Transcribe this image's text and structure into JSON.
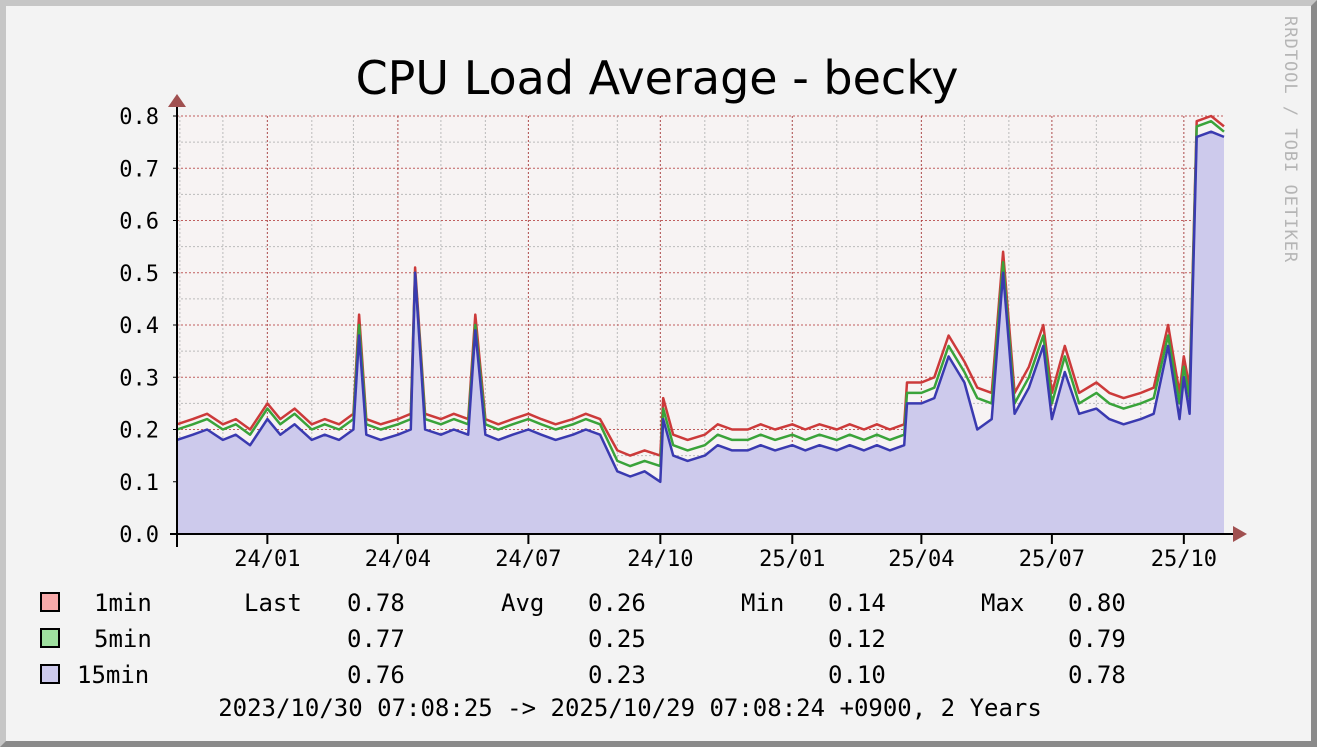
{
  "chart_data": {
    "type": "area",
    "title": "CPU Load Average - becky",
    "ylim": [
      0,
      0.8
    ],
    "yticks": [
      "0.0",
      "0.1",
      "0.2",
      "0.3",
      "0.4",
      "0.5",
      "0.6",
      "0.7",
      "0.8"
    ],
    "xlim": [
      "2023-10-30",
      "2025-10-29"
    ],
    "xticks": [
      {
        "label": "24/01",
        "date": "2024-01-01"
      },
      {
        "label": "24/04",
        "date": "2024-04-01"
      },
      {
        "label": "24/07",
        "date": "2024-07-01"
      },
      {
        "label": "24/10",
        "date": "2024-10-01"
      },
      {
        "label": "25/01",
        "date": "2025-01-01"
      },
      {
        "label": "25/04",
        "date": "2025-04-01"
      },
      {
        "label": "25/07",
        "date": "2025-07-01"
      },
      {
        "label": "25/10",
        "date": "2025-10-01"
      }
    ],
    "grid": true,
    "x": [
      "2023-10-30",
      "2023-11-10",
      "2023-11-20",
      "2023-12-01",
      "2023-12-10",
      "2023-12-20",
      "2024-01-01",
      "2024-01-10",
      "2024-01-20",
      "2024-02-01",
      "2024-02-10",
      "2024-02-20",
      "2024-03-01",
      "2024-03-05",
      "2024-03-10",
      "2024-03-20",
      "2024-04-01",
      "2024-04-10",
      "2024-04-13",
      "2024-04-20",
      "2024-05-01",
      "2024-05-10",
      "2024-05-20",
      "2024-05-25",
      "2024-06-01",
      "2024-06-10",
      "2024-06-20",
      "2024-07-01",
      "2024-07-10",
      "2024-07-20",
      "2024-08-01",
      "2024-08-10",
      "2024-08-20",
      "2024-09-01",
      "2024-09-10",
      "2024-09-20",
      "2024-10-01",
      "2024-10-03",
      "2024-10-10",
      "2024-10-20",
      "2024-11-01",
      "2024-11-10",
      "2024-11-20",
      "2024-12-01",
      "2024-12-10",
      "2024-12-20",
      "2025-01-01",
      "2025-01-10",
      "2025-01-20",
      "2025-02-01",
      "2025-02-10",
      "2025-02-20",
      "2025-03-01",
      "2025-03-10",
      "2025-03-20",
      "2025-03-22",
      "2025-04-01",
      "2025-04-10",
      "2025-04-20",
      "2025-05-01",
      "2025-05-10",
      "2025-05-20",
      "2025-05-28",
      "2025-06-05",
      "2025-06-15",
      "2025-06-25",
      "2025-07-01",
      "2025-07-10",
      "2025-07-20",
      "2025-08-01",
      "2025-08-10",
      "2025-08-20",
      "2025-09-01",
      "2025-09-10",
      "2025-09-20",
      "2025-09-28",
      "2025-10-01",
      "2025-10-05",
      "2025-10-10",
      "2025-10-20",
      "2025-10-29"
    ],
    "series": [
      {
        "name": "1min",
        "color": "#cc3a3a",
        "values": [
          0.21,
          0.22,
          0.23,
          0.21,
          0.22,
          0.2,
          0.25,
          0.22,
          0.24,
          0.21,
          0.22,
          0.21,
          0.23,
          0.42,
          0.22,
          0.21,
          0.22,
          0.23,
          0.51,
          0.23,
          0.22,
          0.23,
          0.22,
          0.42,
          0.22,
          0.21,
          0.22,
          0.23,
          0.22,
          0.21,
          0.22,
          0.23,
          0.22,
          0.16,
          0.15,
          0.16,
          0.15,
          0.26,
          0.19,
          0.18,
          0.19,
          0.21,
          0.2,
          0.2,
          0.21,
          0.2,
          0.21,
          0.2,
          0.21,
          0.2,
          0.21,
          0.2,
          0.21,
          0.2,
          0.21,
          0.29,
          0.29,
          0.3,
          0.38,
          0.33,
          0.28,
          0.27,
          0.54,
          0.27,
          0.32,
          0.4,
          0.27,
          0.36,
          0.27,
          0.29,
          0.27,
          0.26,
          0.27,
          0.28,
          0.4,
          0.27,
          0.34,
          0.28,
          0.79,
          0.8,
          0.78
        ]
      },
      {
        "name": "5min",
        "color": "#3aa33a",
        "values": [
          0.2,
          0.21,
          0.22,
          0.2,
          0.21,
          0.19,
          0.24,
          0.21,
          0.23,
          0.2,
          0.21,
          0.2,
          0.22,
          0.4,
          0.21,
          0.2,
          0.21,
          0.22,
          0.5,
          0.22,
          0.21,
          0.22,
          0.21,
          0.4,
          0.21,
          0.2,
          0.21,
          0.22,
          0.21,
          0.2,
          0.21,
          0.22,
          0.21,
          0.14,
          0.13,
          0.14,
          0.13,
          0.24,
          0.17,
          0.16,
          0.17,
          0.19,
          0.18,
          0.18,
          0.19,
          0.18,
          0.19,
          0.18,
          0.19,
          0.18,
          0.19,
          0.18,
          0.19,
          0.18,
          0.19,
          0.27,
          0.27,
          0.28,
          0.36,
          0.31,
          0.26,
          0.25,
          0.52,
          0.25,
          0.3,
          0.38,
          0.25,
          0.34,
          0.25,
          0.27,
          0.25,
          0.24,
          0.25,
          0.26,
          0.38,
          0.25,
          0.32,
          0.26,
          0.78,
          0.79,
          0.77
        ]
      },
      {
        "name": "15min",
        "color": "#3a3ab0",
        "values": [
          0.18,
          0.19,
          0.2,
          0.18,
          0.19,
          0.17,
          0.22,
          0.19,
          0.21,
          0.18,
          0.19,
          0.18,
          0.2,
          0.38,
          0.19,
          0.18,
          0.19,
          0.2,
          0.5,
          0.2,
          0.19,
          0.2,
          0.19,
          0.39,
          0.19,
          0.18,
          0.19,
          0.2,
          0.19,
          0.18,
          0.19,
          0.2,
          0.19,
          0.12,
          0.11,
          0.12,
          0.1,
          0.22,
          0.15,
          0.14,
          0.15,
          0.17,
          0.16,
          0.16,
          0.17,
          0.16,
          0.17,
          0.16,
          0.17,
          0.16,
          0.17,
          0.16,
          0.17,
          0.16,
          0.17,
          0.25,
          0.25,
          0.26,
          0.34,
          0.29,
          0.2,
          0.22,
          0.5,
          0.23,
          0.28,
          0.36,
          0.22,
          0.31,
          0.23,
          0.24,
          0.22,
          0.21,
          0.22,
          0.23,
          0.36,
          0.22,
          0.3,
          0.23,
          0.76,
          0.77,
          0.76
        ]
      }
    ],
    "fill_color": "#cdcaec",
    "plot_background": "#f7f3f3"
  },
  "watermark": "RRDTOOL / TOBI OETIKER",
  "legend": {
    "rows": [
      {
        "name": "1min",
        "color": "#f7a9a9",
        "last": "0.78",
        "avg": "0.26",
        "min": "0.14",
        "max": "0.80"
      },
      {
        "name": "5min",
        "color": "#9fe09f",
        "last": "0.77",
        "avg": "0.25",
        "min": "0.12",
        "max": "0.79"
      },
      {
        "name": "15min",
        "color": "#cdcaec",
        "last": "0.76",
        "avg": "0.23",
        "min": "0.10",
        "max": "0.78"
      }
    ],
    "labels": {
      "last": "Last",
      "avg": "Avg",
      "min": "Min",
      "max": "Max"
    }
  },
  "footer": "2023/10/30 07:08:25 -> 2025/10/29 07:08:24 +0900, 2 Years"
}
